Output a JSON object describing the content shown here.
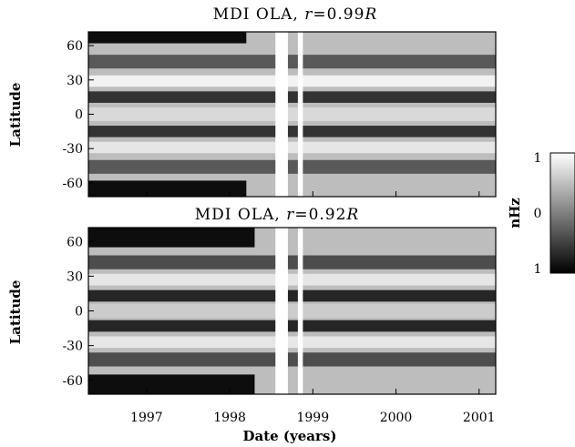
{
  "figure": {
    "colorbar": {
      "label": "nHz",
      "ticks": [
        "1",
        "0",
        "1"
      ],
      "colormap": [
        "#000000",
        "#ffffff"
      ]
    },
    "xlabel": "Date (years)"
  },
  "chart_data": [
    {
      "type": "heatmap",
      "title": "MDI OLA, r=0.99R",
      "title_parts": {
        "prefix": "MDI OLA, ",
        "var": "r",
        "mid": "=0.99",
        "unit": "R"
      },
      "xlabel": "",
      "ylabel": "Latitude",
      "xlim": [
        1996.3,
        2001.2
      ],
      "ylim": [
        -72,
        72
      ],
      "x_ticks": [
        1997,
        1998,
        1999,
        2000,
        2001
      ],
      "y_ticks": [
        60,
        30,
        0,
        -30,
        -60
      ],
      "y_tick_labels": [
        "60",
        "30",
        "0",
        "-30",
        "-60"
      ],
      "gaps": [
        [
          1998.55,
          1998.7
        ],
        [
          1998.82,
          1998.88
        ]
      ],
      "zonal_bands": [
        {
          "lat_start": 62,
          "lat_end": 72,
          "value": -0.9,
          "x_end": 1998.2
        },
        {
          "lat_start": 40,
          "lat_end": 52,
          "value": -0.3
        },
        {
          "lat_start": 24,
          "lat_end": 34,
          "value": 0.9
        },
        {
          "lat_start": 10,
          "lat_end": 20,
          "value": -0.6
        },
        {
          "lat_start": -6,
          "lat_end": 6,
          "value": 0.7
        },
        {
          "lat_start": -20,
          "lat_end": -10,
          "value": -0.6
        },
        {
          "lat_start": -34,
          "lat_end": -24,
          "value": 0.8
        },
        {
          "lat_start": -52,
          "lat_end": -40,
          "value": -0.3
        },
        {
          "lat_start": -72,
          "lat_end": -58,
          "value": -0.9,
          "x_end": 1998.2
        }
      ]
    },
    {
      "type": "heatmap",
      "title": "MDI OLA, r=0.92R",
      "title_parts": {
        "prefix": "MDI OLA, ",
        "var": "r",
        "mid": "=0.92",
        "unit": "R"
      },
      "xlabel": "Date (years)",
      "ylabel": "Latitude",
      "xlim": [
        1996.3,
        2001.2
      ],
      "ylim": [
        -72,
        72
      ],
      "x_ticks": [
        1997,
        1998,
        1999,
        2000,
        2001
      ],
      "x_tick_labels": [
        "1997",
        "1998",
        "1999",
        "2000",
        "2001"
      ],
      "y_ticks": [
        60,
        30,
        0,
        -30,
        -60
      ],
      "y_tick_labels": [
        "60",
        "30",
        "0",
        "-30",
        "-60"
      ],
      "gaps": [
        [
          1998.55,
          1998.7
        ],
        [
          1998.82,
          1998.88
        ]
      ],
      "zonal_bands": [
        {
          "lat_start": 55,
          "lat_end": 72,
          "value": -0.9,
          "x_end": 1998.3
        },
        {
          "lat_start": 36,
          "lat_end": 48,
          "value": -0.4
        },
        {
          "lat_start": 22,
          "lat_end": 32,
          "value": 0.8
        },
        {
          "lat_start": 8,
          "lat_end": 18,
          "value": -0.7
        },
        {
          "lat_start": -6,
          "lat_end": 6,
          "value": 0.6
        },
        {
          "lat_start": -18,
          "lat_end": -8,
          "value": -0.7
        },
        {
          "lat_start": -32,
          "lat_end": -22,
          "value": 0.8
        },
        {
          "lat_start": -48,
          "lat_end": -36,
          "value": -0.4
        },
        {
          "lat_start": -72,
          "lat_end": -55,
          "value": -0.9,
          "x_end": 1998.3
        }
      ]
    }
  ]
}
